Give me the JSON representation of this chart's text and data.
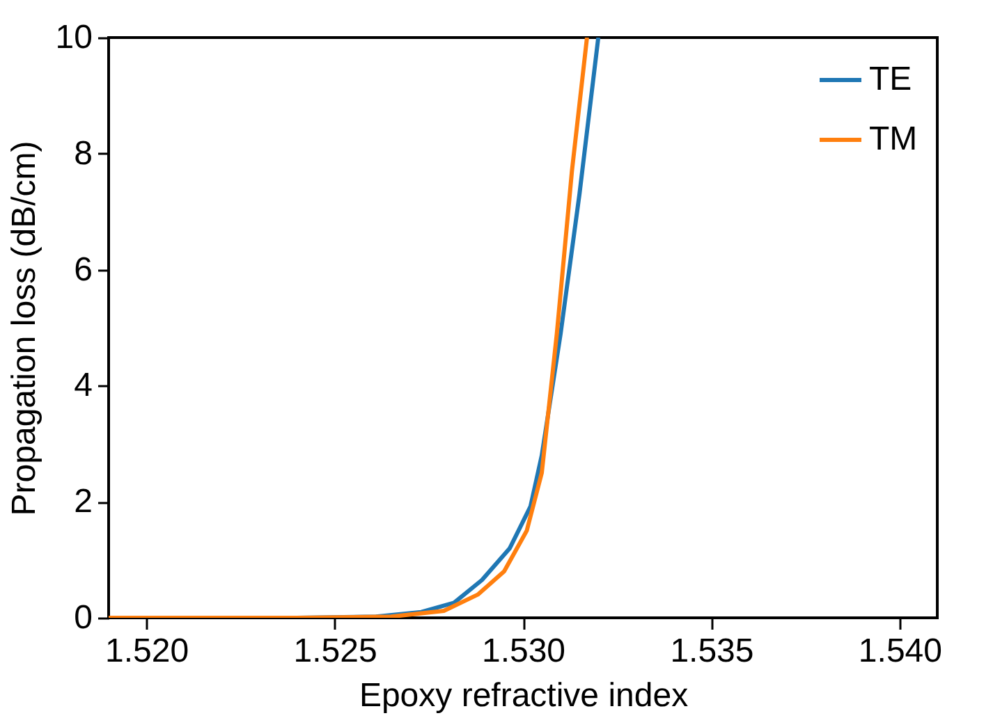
{
  "chart_data": {
    "type": "line",
    "xlabel": "Epoxy refractive index",
    "ylabel": "Propagation loss (dB/cm)",
    "xlim": [
      1.519,
      1.541
    ],
    "xticks": [
      {
        "value": 1.52,
        "label": "1.520"
      },
      {
        "value": 1.525,
        "label": "1.525"
      },
      {
        "value": 1.53,
        "label": "1.530"
      },
      {
        "value": 1.535,
        "label": "1.535"
      },
      {
        "value": 1.54,
        "label": "1.540"
      }
    ],
    "ylim": [
      0,
      10
    ],
    "yticks": [
      0,
      2,
      4,
      6,
      8,
      10
    ],
    "grid": false,
    "legend": "top right",
    "marker": "none",
    "line_style": "solid",
    "series": [
      {
        "name": "TE",
        "color": "#1f77b4",
        "x": [
          1.519,
          1.524,
          1.5261,
          1.5273,
          1.52817,
          1.52891,
          1.52965,
          1.5302,
          1.5305,
          1.531,
          1.5315,
          1.532
        ],
        "values": [
          0,
          0,
          0.02,
          0.1,
          0.26,
          0.65,
          1.2,
          1.92,
          2.8,
          4.9,
          7.3,
          10
        ]
      },
      {
        "name": "TM",
        "color": "#ff7f0e",
        "x": [
          1.519,
          1.524,
          1.5265,
          1.5279,
          1.5288,
          1.5295,
          1.5301,
          1.5305,
          1.5309,
          1.5313,
          1.5317
        ],
        "values": [
          0,
          0,
          0.02,
          0.12,
          0.4,
          0.8,
          1.5,
          2.5,
          4.9,
          7.7,
          10
        ]
      }
    ]
  }
}
